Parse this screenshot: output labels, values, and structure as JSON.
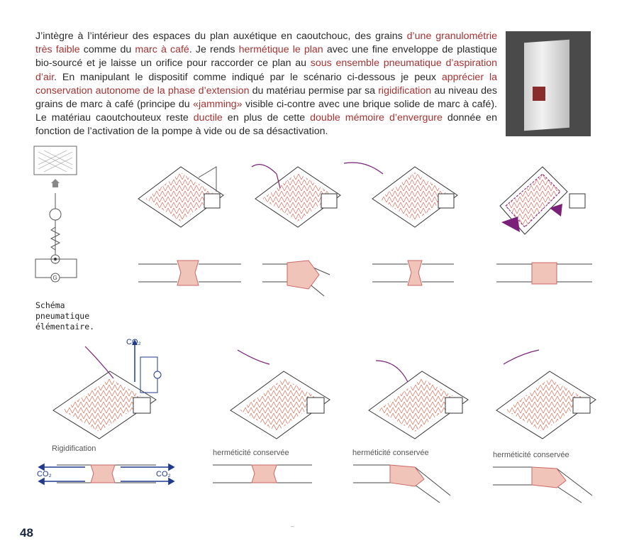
{
  "paragraph": {
    "t1": "J’intègre à l’intérieur des espaces du plan auxétique en caoutchouc, des grains ",
    "h1": "d’une granulométrie très faible",
    "t2": " comme du ",
    "h2": "marc à café",
    "t3": ". Je rends ",
    "h3": "hermétique le plan",
    "t4": " avec une fine enveloppe de plastique bio-sourcé et je laisse un orifice pour raccorder ce plan au ",
    "h4": "sous ensemble pneumatique d’aspiration d’air",
    "t5": ". En manipulant le dispositif comme indiqué par le scénario ci-dessous je peux ",
    "h5": "apprécier la conservation autonome de la phase d’extension",
    "t6": " du matériau permise par sa ",
    "h6": "rigidification",
    "t7": " au niveau des grains de marc à café (principe du ",
    "h7": "«jamming»",
    "t8": " visible ci-contre avec une brique solide de marc à café). Le matériau caoutchouteux reste ",
    "h8": "ductile",
    "t9": " en plus de cette ",
    "h9": "double mémoire d’envergure",
    "t10": " donnée en fonction de l’activation de la pompe à vide ou de sa désactivation."
  },
  "schema_caption": "Schéma\npneumatique\nélémentaire.",
  "schema_g": "G",
  "co2_label": "CO₂",
  "bottom_labels": {
    "rigidification": "Rigidification",
    "conserved_1": "herméticité conservée",
    "conserved_2": "herméticité conservée",
    "conserved_3": "herméticité conservée"
  },
  "page_number": "48",
  "footer_dash": "–",
  "colors": {
    "highlight": "#a83232",
    "arrow_blue": "#1f3a8f",
    "purple": "#7a1f7a"
  }
}
